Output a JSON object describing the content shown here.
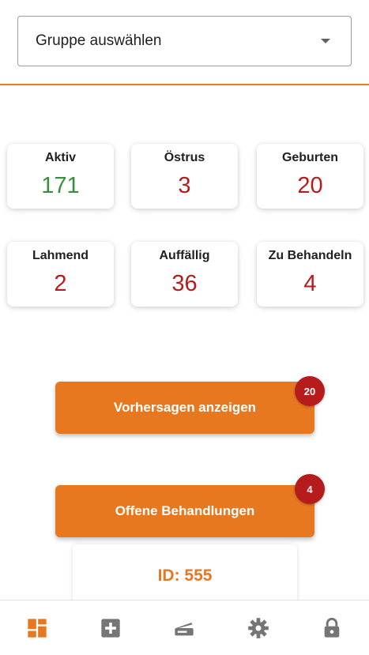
{
  "group_select": {
    "label": "Gruppe auswählen",
    "caret_icon": "arrow-drop-down-icon"
  },
  "stats": [
    {
      "title": "Aktiv",
      "value": "171",
      "color": "#388e3c"
    },
    {
      "title": "Östrus",
      "value": "3",
      "color": "#b71c1c"
    },
    {
      "title": "Geburten",
      "value": "20",
      "color": "#b71c1c"
    },
    {
      "title": "Lahmend",
      "value": "2",
      "color": "#b71c1c"
    },
    {
      "title": "Auffällig",
      "value": "36",
      "color": "#b71c1c"
    },
    {
      "title": "Zu Behandeln",
      "value": "4",
      "color": "#b71c1c"
    }
  ],
  "actions": {
    "predictions": {
      "label": "Vorhersagen anzeigen",
      "badge": "20"
    },
    "treatments": {
      "label": "Offene Behandlungen",
      "badge": "4"
    }
  },
  "card": {
    "id_label": "ID: 555"
  },
  "nav": {
    "items": [
      {
        "name": "dashboard",
        "icon": "dashboard-icon",
        "active": true
      },
      {
        "name": "add",
        "icon": "add-box-icon",
        "active": false
      },
      {
        "name": "scanner",
        "icon": "scanner-icon",
        "active": false
      },
      {
        "name": "settings",
        "icon": "gear-icon",
        "active": false
      },
      {
        "name": "lock",
        "icon": "lock-icon",
        "active": false
      }
    ]
  },
  "colors": {
    "accent": "#e8781f",
    "badge": "#b71c1c",
    "good": "#388e3c",
    "alert": "#b71c1c"
  }
}
